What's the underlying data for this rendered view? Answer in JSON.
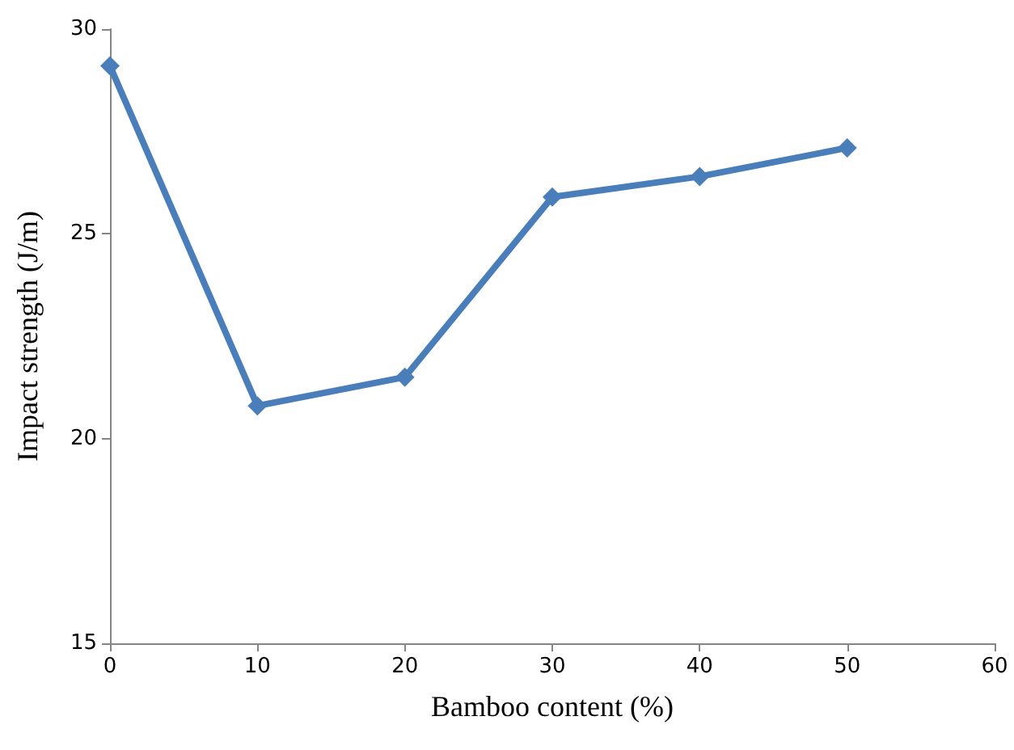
{
  "chart_data": {
    "type": "line",
    "xlabel": "Bamboo content (%)",
    "ylabel": "Impact strength (J/m)",
    "x": [
      0,
      10,
      20,
      30,
      40,
      50
    ],
    "series": [
      {
        "color": "#4a7ebb",
        "values": [
          29.1,
          20.8,
          21.5,
          25.9,
          26.4,
          27.1
        ]
      }
    ],
    "xlim": [
      0,
      60
    ],
    "xticks": [
      0,
      10,
      20,
      30,
      40,
      50,
      60
    ],
    "ylim": [
      15,
      30
    ],
    "yticks": [
      15,
      20,
      25,
      30
    ],
    "marker": "diamond",
    "line_style": "solid"
  }
}
